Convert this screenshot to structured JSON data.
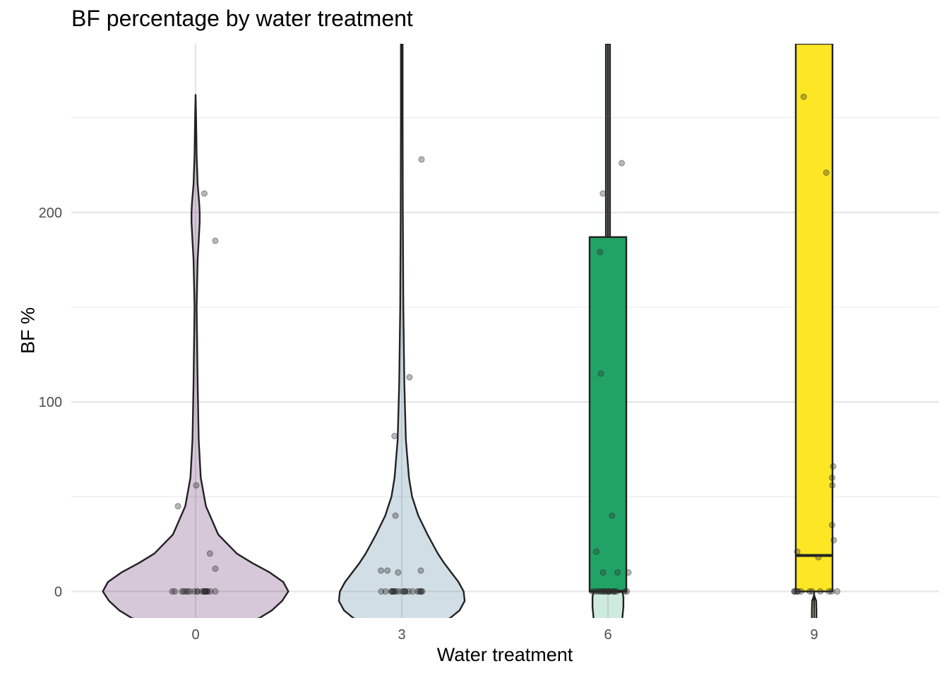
{
  "chart_data": {
    "type": "violin",
    "title": "BF percentage by water treatment",
    "xlabel": "Water treatment",
    "ylabel": "BF %",
    "categories": [
      "0",
      "3",
      "6",
      "9"
    ],
    "yticks": [
      0,
      100,
      200
    ],
    "ylim": [
      -14,
      289
    ],
    "grid": true,
    "legend": "none",
    "colors": {
      "0": "#440154",
      "3": "#31688e",
      "6": "#21a366",
      "9": "#fde725",
      "outline": "#222222",
      "grid": "#e6e6e6",
      "points": "#333333"
    },
    "groups": [
      {
        "name": "0",
        "violin": {
          "y": [
            -15,
            -14,
            -10,
            -5,
            0,
            5,
            10,
            15,
            20,
            30,
            45,
            60,
            80,
            110,
            150,
            175,
            185,
            190,
            195,
            200,
            205,
            215,
            230,
            250,
            262
          ],
          "w": [
            0.57,
            0.62,
            0.74,
            0.84,
            0.9,
            0.85,
            0.72,
            0.55,
            0.4,
            0.22,
            0.1,
            0.05,
            0.03,
            0.02,
            0.01,
            0.02,
            0.03,
            0.035,
            0.04,
            0.04,
            0.035,
            0.02,
            0.01,
            0.005,
            0.0
          ]
        },
        "points": [
          0,
          0,
          0,
          0,
          0,
          0,
          0,
          0,
          0,
          0,
          0,
          0,
          0,
          0,
          0,
          0,
          0,
          0,
          0,
          0,
          12,
          20,
          45,
          56,
          185,
          210
        ]
      },
      {
        "name": "3",
        "violin": {
          "y": [
            -15,
            -14,
            -10,
            -5,
            0,
            5,
            10,
            15,
            20,
            25,
            30,
            40,
            50,
            60,
            80,
            110,
            150,
            200,
            250,
            275,
            289
          ],
          "w": [
            0.43,
            0.47,
            0.56,
            0.61,
            0.6,
            0.55,
            0.48,
            0.41,
            0.35,
            0.3,
            0.25,
            0.16,
            0.1,
            0.07,
            0.04,
            0.025,
            0.015,
            0.01,
            0.008,
            0.008,
            0.008
          ]
        },
        "points": [
          0,
          0,
          0,
          0,
          0,
          0,
          0,
          0,
          0,
          0,
          0,
          0,
          0,
          0,
          0,
          0,
          0,
          0,
          0,
          0,
          10,
          11,
          11,
          11,
          40,
          82,
          113,
          228
        ]
      },
      {
        "name": "6",
        "violin": {
          "y": [
            -15,
            -14,
            -8,
            -3,
            0,
            3,
            8,
            15,
            25,
            35,
            50,
            80,
            110,
            150,
            190,
            230,
            289
          ],
          "w": [
            0.14,
            0.14,
            0.15,
            0.15,
            0.14,
            0.13,
            0.11,
            0.09,
            0.07,
            0.05,
            0.035,
            0.025,
            0.02,
            0.02,
            0.02,
            0.02,
            0.02
          ]
        },
        "box": {
          "q1": 0,
          "median": 0,
          "q3": 187,
          "whisker_high": 289
        },
        "points": [
          0,
          0,
          0,
          0,
          0,
          0,
          0,
          0,
          0,
          0,
          0,
          0,
          0,
          0,
          0,
          0,
          0,
          0,
          10,
          10,
          10,
          21,
          40,
          115,
          179,
          210,
          226
        ]
      },
      {
        "name": "9",
        "violin": {
          "y": [
            -15,
            -14,
            -10,
            -5,
            -2
          ],
          "w": [
            0.022,
            0.022,
            0.022,
            0.02,
            0.0
          ]
        },
        "box": {
          "q1": 0,
          "median": 19,
          "q3": 289,
          "whisker_low": -15
        },
        "points": [
          0,
          0,
          0,
          0,
          0,
          0,
          0,
          0,
          0,
          0,
          0,
          0,
          18,
          21,
          27,
          35,
          56,
          60,
          66,
          221,
          261
        ]
      }
    ]
  }
}
